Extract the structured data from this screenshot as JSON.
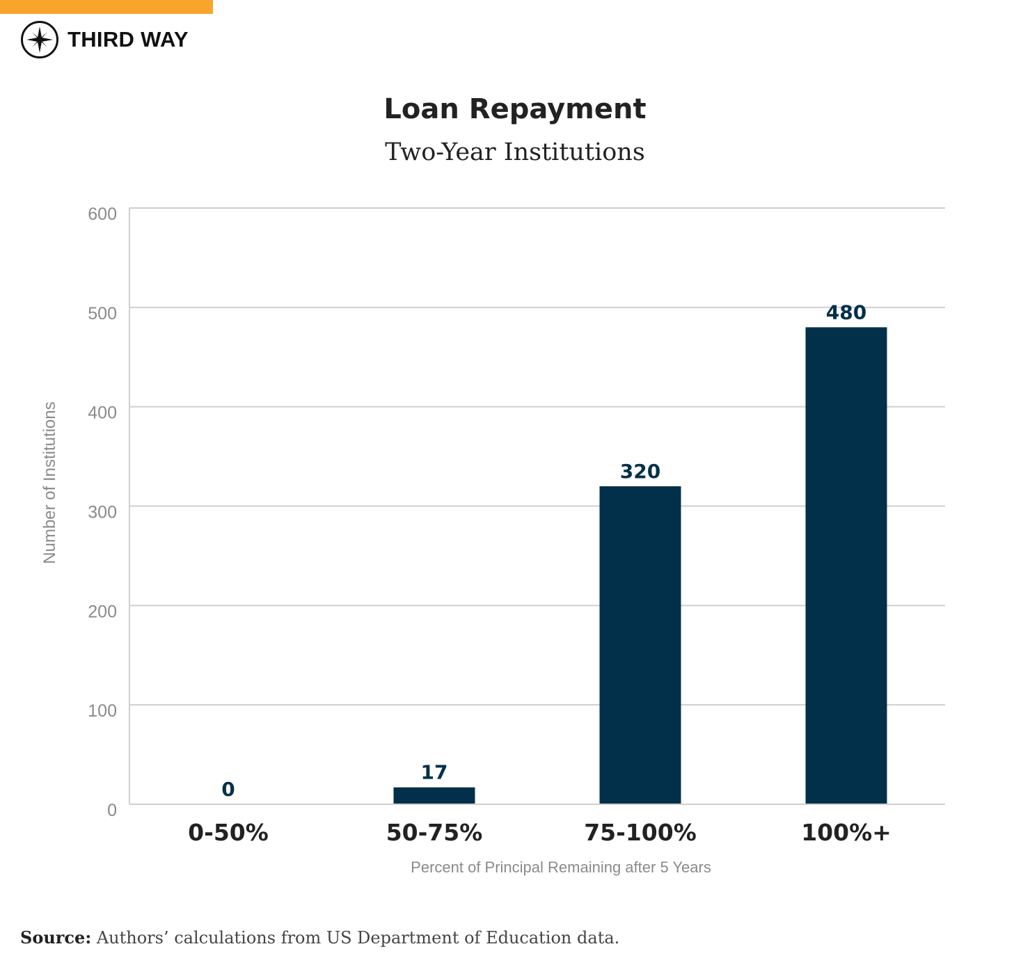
{
  "brand": {
    "name": "THIRD WAY",
    "accent_color": "#f7a52b",
    "logo_icon": "compass-icon"
  },
  "title": "Loan Repayment",
  "subtitle": "Two-Year Institutions",
  "source": {
    "label": "Source:",
    "text": "Authors’ calculations from US Department of Education data."
  },
  "chart_data": {
    "type": "bar",
    "categories": [
      "0-50%",
      "50-75%",
      "75-100%",
      "100%+"
    ],
    "values": [
      0,
      17,
      320,
      480
    ],
    "data_labels": [
      "0",
      "17",
      "320",
      "480"
    ],
    "xlabel": "Percent of Principal Remaining after 5 Years",
    "ylabel": "Number of Institutions",
    "ylim": [
      0,
      600
    ],
    "yticks": [
      0,
      100,
      200,
      300,
      400,
      500,
      600
    ],
    "grid": true,
    "bar_color": "#02304a",
    "grid_color": "#cfcfcf"
  }
}
